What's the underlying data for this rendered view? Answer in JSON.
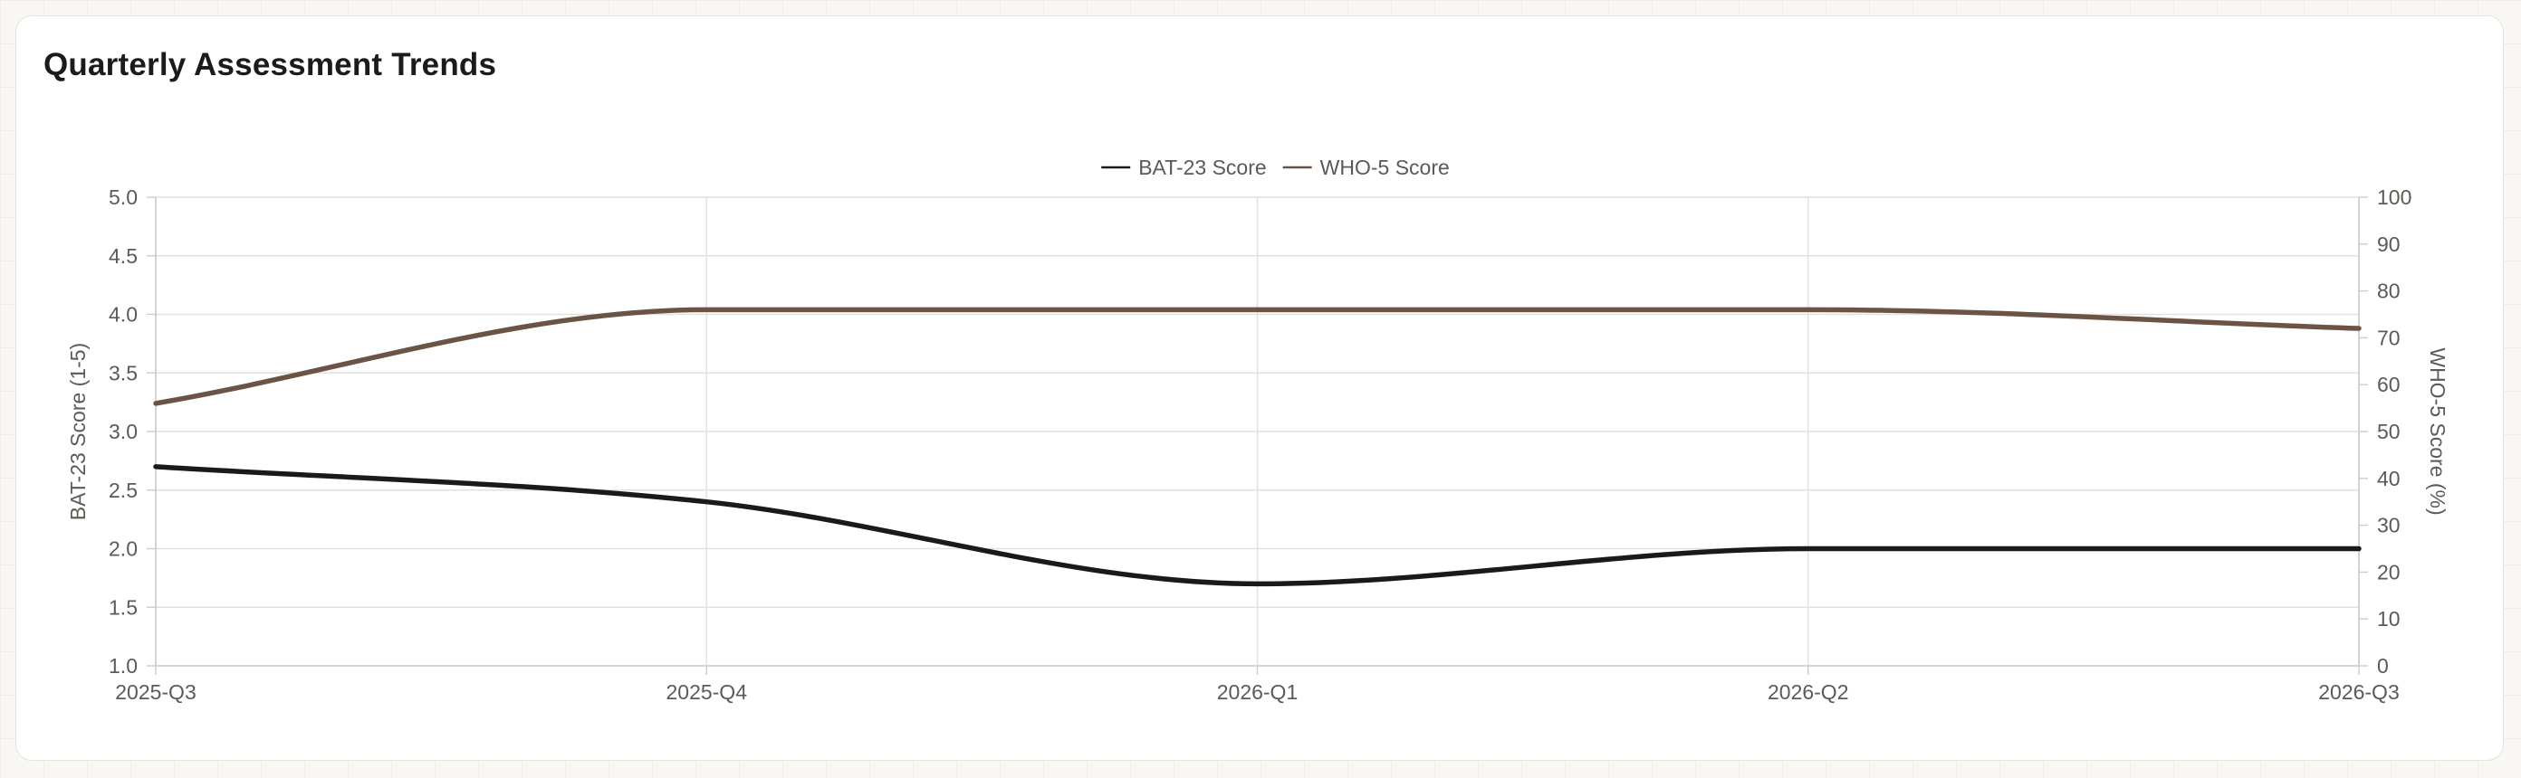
{
  "page": {
    "title": "Quarterly Assessment Trends"
  },
  "chart_data": {
    "type": "line",
    "title": "",
    "categories": [
      "2025-Q3",
      "2025-Q4",
      "2026-Q1",
      "2026-Q2",
      "2026-Q3"
    ],
    "series": [
      {
        "name": "BAT-23 Score",
        "axis": "left",
        "color": "#1a1a1a",
        "values": [
          2.7,
          2.4,
          1.7,
          2.0,
          2.0
        ]
      },
      {
        "name": "WHO-5 Score",
        "axis": "right",
        "color": "#6b5446",
        "values": [
          56,
          76,
          76,
          76,
          72
        ]
      }
    ],
    "y_left": {
      "label": "BAT-23 Score (1-5)",
      "range": [
        1.0,
        5.0
      ],
      "ticks": [
        "1.0",
        "1.5",
        "2.0",
        "2.5",
        "3.0",
        "3.5",
        "4.0",
        "4.5",
        "5.0"
      ]
    },
    "y_right": {
      "label": "WHO-5 Score (%)",
      "range": [
        0,
        100
      ],
      "ticks": [
        "0",
        "10",
        "20",
        "30",
        "40",
        "50",
        "60",
        "70",
        "80",
        "90",
        "100"
      ]
    },
    "grid": true,
    "legend_position": "top-center",
    "line_style": "smooth"
  }
}
